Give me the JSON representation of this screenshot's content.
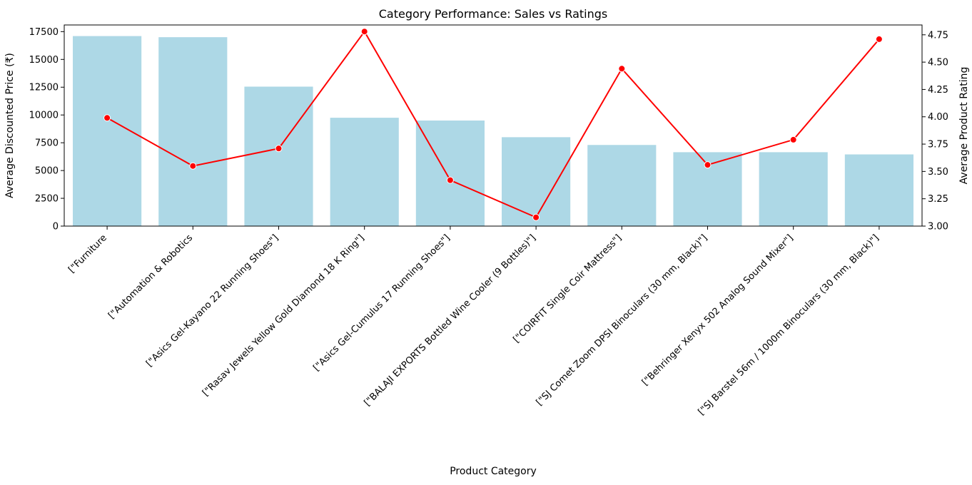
{
  "chart_data": {
    "type": "bar",
    "title": "Category Performance: Sales vs Ratings",
    "xlabel": "Product Category",
    "ylabel": "Average Discounted Price (₹)",
    "y2label": "Average Product Rating",
    "categories": [
      "[\"Furniture",
      "[\"Automation & Robotics",
      "[\"Asics Gel-Kayano 22 Running Shoes\"]",
      "[\"Rasav Jewels Yellow Gold Diamond 18 K Ring\"]",
      "[\"Asics Gel-Cumulus 17 Running Shoes\"]",
      "[\"BALAJI EXPORTS Bottled Wine Cooler (9 Bottles)\"]",
      "[\"COIRFIT Single Coir Mattress\"]",
      "[\"SJ Comet Zoom DPSI Binoculars (30 mm, Black)\"]",
      "[\"Behringer Xenyx 502 Analog Sound Mixer\"]",
      "[\"SJ Barstel 56m / 1000m Binoculars (30 mm, Black)\"]"
    ],
    "series": [
      {
        "type": "bar",
        "axis": "left",
        "color": "#add8e6",
        "values": [
          17100,
          17000,
          12550,
          9750,
          9500,
          8000,
          7300,
          6650,
          6650,
          6450
        ]
      },
      {
        "type": "line",
        "axis": "right",
        "color": "#ff0000",
        "values": [
          3.99,
          3.55,
          3.71,
          4.78,
          3.42,
          3.08,
          4.44,
          3.56,
          3.79,
          4.71
        ]
      }
    ],
    "ylim": [
      0,
      18100
    ],
    "yticks": [
      0,
      2500,
      5000,
      7500,
      10000,
      12500,
      15000,
      17500
    ],
    "y2lim": [
      3.0,
      4.84
    ],
    "y2ticks": [
      "3.00",
      "3.25",
      "3.50",
      "3.75",
      "4.00",
      "4.25",
      "4.50",
      "4.75"
    ],
    "grid": false,
    "legend": "none"
  }
}
